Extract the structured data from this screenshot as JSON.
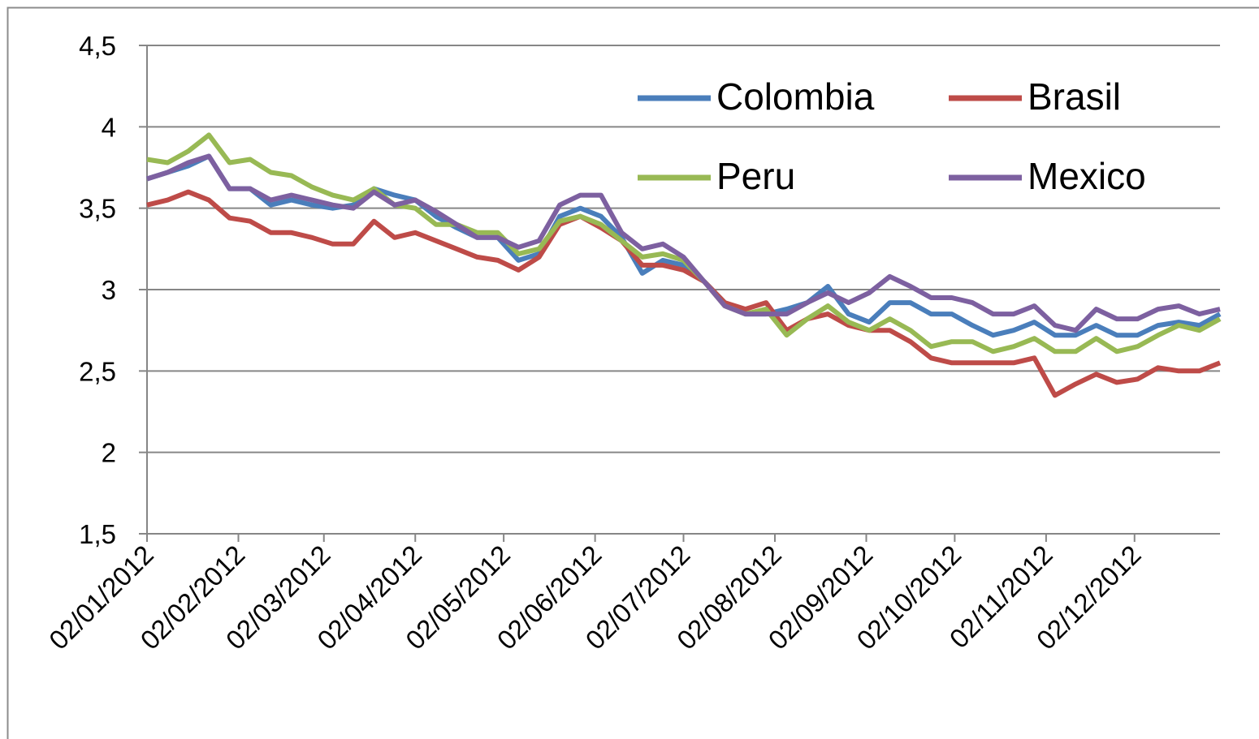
{
  "chart_data": {
    "type": "line",
    "x": [
      "02/01/2012",
      "09/01/2012",
      "16/01/2012",
      "23/01/2012",
      "30/01/2012",
      "06/02/2012",
      "13/02/2012",
      "20/02/2012",
      "27/02/2012",
      "05/03/2012",
      "12/03/2012",
      "19/03/2012",
      "26/03/2012",
      "02/04/2012",
      "09/04/2012",
      "16/04/2012",
      "23/04/2012",
      "30/04/2012",
      "07/05/2012",
      "14/05/2012",
      "21/05/2012",
      "28/05/2012",
      "04/06/2012",
      "11/06/2012",
      "18/06/2012",
      "25/06/2012",
      "02/07/2012",
      "09/07/2012",
      "16/07/2012",
      "23/07/2012",
      "30/07/2012",
      "06/08/2012",
      "13/08/2012",
      "20/08/2012",
      "27/08/2012",
      "03/09/2012",
      "10/09/2012",
      "17/09/2012",
      "24/09/2012",
      "01/10/2012",
      "08/10/2012",
      "15/10/2012",
      "22/10/2012",
      "29/10/2012",
      "05/11/2012",
      "12/11/2012",
      "19/11/2012",
      "26/11/2012",
      "03/12/2012",
      "10/12/2012",
      "17/12/2012",
      "24/12/2012",
      "31/12/2012"
    ],
    "series": [
      {
        "name": "Colombia",
        "color": "#4a7ebb",
        "values": [
          3.68,
          3.72,
          3.76,
          3.82,
          3.62,
          3.62,
          3.52,
          3.55,
          3.52,
          3.5,
          3.52,
          3.62,
          3.58,
          3.55,
          3.45,
          3.38,
          3.32,
          3.32,
          3.18,
          3.22,
          3.45,
          3.5,
          3.45,
          3.32,
          3.1,
          3.18,
          3.15,
          3.05,
          2.92,
          2.85,
          2.85,
          2.88,
          2.92,
          3.02,
          2.85,
          2.8,
          2.92,
          2.92,
          2.85,
          2.85,
          2.78,
          2.72,
          2.75,
          2.8,
          2.72,
          2.72,
          2.78,
          2.72,
          2.72,
          2.78,
          2.8,
          2.78,
          2.85
        ]
      },
      {
        "name": "Brasil",
        "color": "#be4b48",
        "values": [
          3.52,
          3.55,
          3.6,
          3.55,
          3.44,
          3.42,
          3.35,
          3.35,
          3.32,
          3.28,
          3.28,
          3.42,
          3.32,
          3.35,
          3.3,
          3.25,
          3.2,
          3.18,
          3.12,
          3.2,
          3.4,
          3.45,
          3.38,
          3.3,
          3.15,
          3.15,
          3.12,
          3.05,
          2.92,
          2.88,
          2.92,
          2.75,
          2.82,
          2.85,
          2.78,
          2.75,
          2.75,
          2.68,
          2.58,
          2.55,
          2.55,
          2.55,
          2.55,
          2.58,
          2.35,
          2.42,
          2.48,
          2.43,
          2.45,
          2.52,
          2.5,
          2.5,
          2.55
        ]
      },
      {
        "name": "Peru",
        "color": "#98b954",
        "values": [
          3.8,
          3.78,
          3.85,
          3.95,
          3.78,
          3.8,
          3.72,
          3.7,
          3.63,
          3.58,
          3.55,
          3.62,
          3.52,
          3.5,
          3.4,
          3.4,
          3.35,
          3.35,
          3.22,
          3.25,
          3.42,
          3.45,
          3.4,
          3.3,
          3.2,
          3.22,
          3.18,
          3.05,
          2.9,
          2.85,
          2.88,
          2.72,
          2.82,
          2.9,
          2.8,
          2.75,
          2.82,
          2.75,
          2.65,
          2.68,
          2.68,
          2.62,
          2.65,
          2.7,
          2.62,
          2.62,
          2.7,
          2.62,
          2.65,
          2.72,
          2.78,
          2.75,
          2.82
        ]
      },
      {
        "name": "Mexico",
        "color": "#7d60a0",
        "values": [
          3.68,
          3.72,
          3.78,
          3.82,
          3.62,
          3.62,
          3.55,
          3.58,
          3.55,
          3.52,
          3.5,
          3.6,
          3.52,
          3.55,
          3.48,
          3.4,
          3.32,
          3.32,
          3.26,
          3.3,
          3.52,
          3.58,
          3.58,
          3.35,
          3.25,
          3.28,
          3.2,
          3.05,
          2.9,
          2.85,
          2.85,
          2.85,
          2.92,
          2.98,
          2.92,
          2.98,
          3.08,
          3.02,
          2.95,
          2.95,
          2.92,
          2.85,
          2.85,
          2.9,
          2.78,
          2.75,
          2.88,
          2.82,
          2.82,
          2.88,
          2.9,
          2.85,
          2.88
        ]
      }
    ],
    "xlim": [
      "02/01/2012",
      "31/12/2012"
    ],
    "xticks": [
      "02/01/2012",
      "02/02/2012",
      "02/03/2012",
      "02/04/2012",
      "02/05/2012",
      "02/06/2012",
      "02/07/2012",
      "02/08/2012",
      "02/09/2012",
      "02/10/2012",
      "02/11/2012",
      "02/12/2012"
    ],
    "ylim": [
      1.5,
      4.5
    ],
    "yticks": [
      {
        "value": 1.5,
        "label": "1,5"
      },
      2,
      {
        "value": 2.5,
        "label": "2,5"
      },
      3,
      {
        "value": 3.5,
        "label": "3,5"
      },
      4,
      {
        "value": 4.5,
        "label": "4,5"
      }
    ],
    "grid": true,
    "legend": "top-right"
  }
}
